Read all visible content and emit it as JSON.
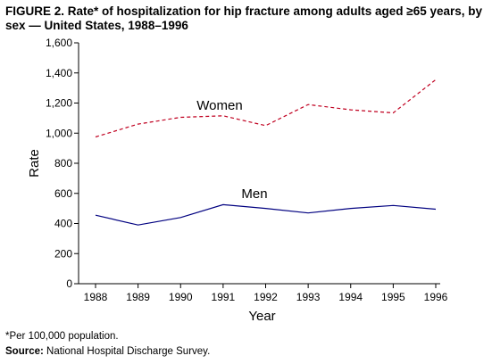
{
  "figure": {
    "title": "FIGURE 2. Rate* of hospitalization for hip fracture among adults aged ≥65 years, by sex — United States, 1988–1996"
  },
  "chart_data": {
    "type": "line",
    "x": [
      "1988",
      "1989",
      "1990",
      "1991",
      "1992",
      "1993",
      "1994",
      "1995",
      "1996"
    ],
    "xlabel": "Year",
    "ylabel": "Rate",
    "ylim": [
      0,
      1600
    ],
    "yticks": [
      "0",
      "200",
      "400",
      "600",
      "800",
      "1,000",
      "1,200",
      "1,400",
      "1,600"
    ],
    "ytick_values": [
      0,
      200,
      400,
      600,
      800,
      1000,
      1200,
      1400,
      1600
    ],
    "grid": false,
    "series": [
      {
        "name": "Women",
        "values": [
          975,
          1060,
          1105,
          1115,
          1050,
          1190,
          1155,
          1135,
          1355
        ],
        "color": "#c00020",
        "style": "dashed"
      },
      {
        "name": "Men",
        "values": [
          455,
          390,
          440,
          525,
          500,
          470,
          500,
          520,
          495
        ],
        "color": "#000080",
        "style": "solid"
      }
    ]
  },
  "footnote": "*Per 100,000 population.",
  "source": {
    "label": "Source:",
    "text": "National Hospital Discharge Survey."
  }
}
